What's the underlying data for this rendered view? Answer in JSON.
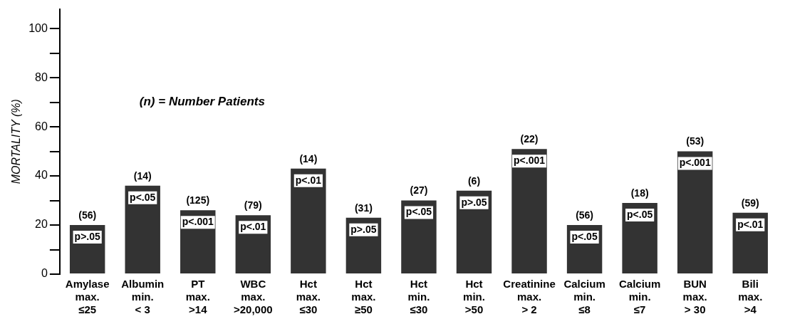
{
  "chart_data": {
    "type": "bar",
    "ylabel": "MORTALITY (%)",
    "categories": [
      "Amylase\nmax.\n≤25",
      "Albumin\nmin.\n< 3",
      "PT\nmax.\n>14",
      "WBC\nmax.\n>20,000",
      "Hct\nmax.\n≤30",
      "Hct\nmax.\n≥50",
      "Hct\nmin.\n≤30",
      "Hct\nmin.\n>50",
      "Creatinine\nmax.\n> 2",
      "Calcium\nmin.\n≤8",
      "Calcium\nmin.\n≤7",
      "BUN\nmax.\n> 30",
      "Bili\nmax.\n>4"
    ],
    "values": [
      20,
      36,
      26,
      24,
      43,
      23,
      30,
      34,
      51,
      20,
      29,
      50,
      25
    ],
    "color": "#333333",
    "ylim": [
      0,
      108
    ],
    "yticks": [
      0,
      {
        "value": 10,
        "label": null
      },
      20,
      {
        "value": 30,
        "label": null
      },
      40,
      {
        "value": 50,
        "label": null
      },
      60,
      {
        "value": 70,
        "label": null
      },
      80,
      {
        "value": 90,
        "label": null
      },
      100
    ],
    "grid": false,
    "legend": false,
    "annotations": [
      "(n) = Number Patients",
      {
        "text": "(56)",
        "x": "Amylase\nmax.\n≤25",
        "y": 20
      },
      {
        "text": "(14)",
        "x": "Albumin\nmin.\n< 3",
        "y": 36
      },
      {
        "text": "(125)",
        "x": "PT\nmax.\n>14",
        "y": 26
      },
      {
        "text": "(79)",
        "x": "WBC\nmax.\n>20,000",
        "y": 24
      },
      {
        "text": "(14)",
        "x": "Hct\nmax.\n≤30",
        "y": 43
      },
      {
        "text": "(31)",
        "x": "Hct\nmax.\n≥50",
        "y": 23
      },
      {
        "text": "(27)",
        "x": "Hct\nmin.\n≤30",
        "y": 30
      },
      {
        "text": "(6)",
        "x": "Hct\nmin.\n>50",
        "y": 34
      },
      {
        "text": "(22)",
        "x": "Creatinine\nmax.\n> 2",
        "y": 51
      },
      {
        "text": "(56)",
        "x": "Calcium\nmin.\n≤8",
        "y": 20
      },
      {
        "text": "(18)",
        "x": "Calcium\nmin.\n≤7",
        "y": 29
      },
      {
        "text": "(53)",
        "x": "BUN\nmax.\n> 30",
        "y": 50
      },
      {
        "text": "(59)",
        "x": "Bili\nmax.\n>4",
        "y": 25
      },
      {
        "text": "p>.05",
        "x": "Amylase\nmax.\n≤25",
        "y": 20
      },
      {
        "text": "p<.05",
        "x": "Albumin\nmin.\n< 3",
        "y": 36
      },
      {
        "text": "p<.001",
        "x": "PT\nmax.\n>14",
        "y": 26
      },
      {
        "text": "p<.01",
        "x": "WBC\nmax.\n>20,000",
        "y": 24
      },
      {
        "text": "p<.01",
        "x": "Hct\nmax.\n≤30",
        "y": 43
      },
      {
        "text": "p>.05",
        "x": "Hct\nmax.\n≥50",
        "y": 23
      },
      {
        "text": "p<.05",
        "x": "Hct\nmin.\n≤30",
        "y": 30
      },
      {
        "text": "p>.05",
        "x": "Hct\nmin.\n>50",
        "y": 34
      },
      {
        "text": "p<.001",
        "x": "Creatinine\nmax.\n> 2",
        "y": 51
      },
      {
        "text": "p<.05",
        "x": "Calcium\nmin.\n≤8",
        "y": 20
      },
      {
        "text": "p<.05",
        "x": "Calcium\nmin.\n≤7",
        "y": 29
      },
      {
        "text": "p<.001",
        "x": "BUN\nmax.\n> 30",
        "y": 50
      },
      {
        "text": "p<.01",
        "x": "Bili\nmax.\n>4",
        "y": 25
      }
    ]
  }
}
